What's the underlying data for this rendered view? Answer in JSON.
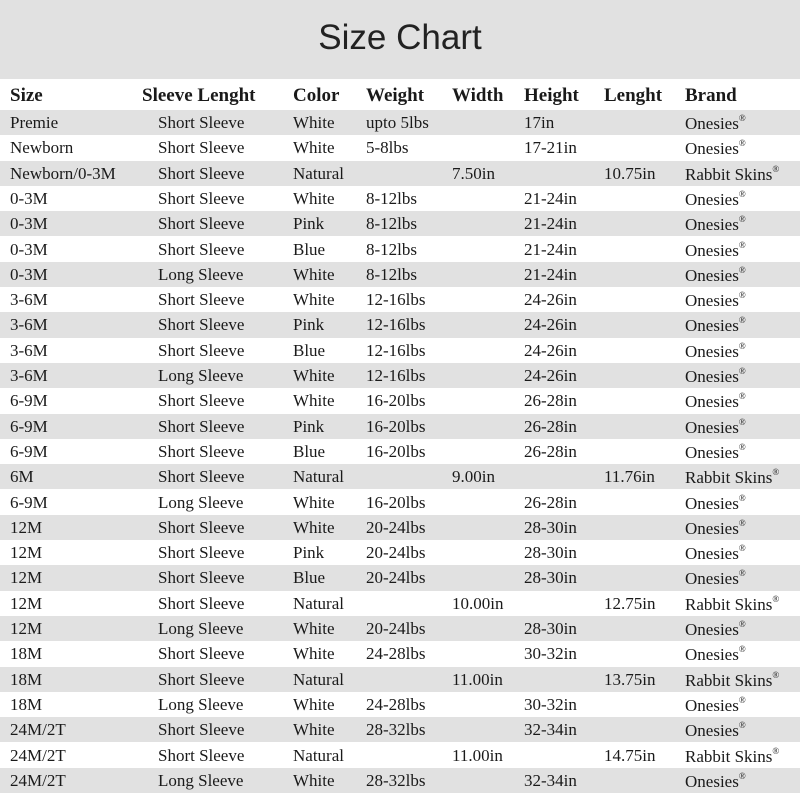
{
  "title": "Size Chart",
  "columns": [
    "Size",
    "Sleeve Lenght",
    "Color",
    "Weight",
    "Width",
    "Height",
    "Lenght",
    "Brand"
  ],
  "registered_mark": "®",
  "rows": [
    [
      "Premie",
      "Short Sleeve",
      "White",
      "upto 5lbs",
      "",
      "17in",
      "",
      "Onesies"
    ],
    [
      "Newborn",
      "Short Sleeve",
      "White",
      "5-8lbs",
      "",
      "17-21in",
      "",
      "Onesies"
    ],
    [
      "Newborn/0-3M",
      "Short Sleeve",
      "Natural",
      "",
      "7.50in",
      "",
      "10.75in",
      "Rabbit Skins"
    ],
    [
      "0-3M",
      "Short Sleeve",
      "White",
      "8-12lbs",
      "",
      "21-24in",
      "",
      "Onesies"
    ],
    [
      "0-3M",
      "Short Sleeve",
      "Pink",
      "8-12lbs",
      "",
      "21-24in",
      "",
      "Onesies"
    ],
    [
      "0-3M",
      "Short Sleeve",
      "Blue",
      "8-12lbs",
      "",
      "21-24in",
      "",
      "Onesies"
    ],
    [
      "0-3M",
      "Long Sleeve",
      "White",
      "8-12lbs",
      "",
      "21-24in",
      "",
      "Onesies"
    ],
    [
      "3-6M",
      "Short Sleeve",
      "White",
      "12-16lbs",
      "",
      "24-26in",
      "",
      "Onesies"
    ],
    [
      "3-6M",
      "Short Sleeve",
      "Pink",
      "12-16lbs",
      "",
      "24-26in",
      "",
      "Onesies"
    ],
    [
      "3-6M",
      "Short Sleeve",
      "Blue",
      "12-16lbs",
      "",
      "24-26in",
      "",
      "Onesies"
    ],
    [
      "3-6M",
      "Long Sleeve",
      "White",
      "12-16lbs",
      "",
      "24-26in",
      "",
      "Onesies"
    ],
    [
      "6-9M",
      "Short Sleeve",
      "White",
      "16-20lbs",
      "",
      "26-28in",
      "",
      "Onesies"
    ],
    [
      "6-9M",
      "Short Sleeve",
      "Pink",
      "16-20lbs",
      "",
      "26-28in",
      "",
      "Onesies"
    ],
    [
      "6-9M",
      "Short Sleeve",
      "Blue",
      "16-20lbs",
      "",
      "26-28in",
      "",
      "Onesies"
    ],
    [
      "6M",
      "Short Sleeve",
      "Natural",
      "",
      "9.00in",
      "",
      "11.76in",
      "Rabbit Skins"
    ],
    [
      "6-9M",
      "Long Sleeve",
      "White",
      "16-20lbs",
      "",
      "26-28in",
      "",
      "Onesies"
    ],
    [
      "12M",
      "Short Sleeve",
      "White",
      "20-24lbs",
      "",
      "28-30in",
      "",
      "Onesies"
    ],
    [
      "12M",
      "Short Sleeve",
      "Pink",
      "20-24lbs",
      "",
      "28-30in",
      "",
      "Onesies"
    ],
    [
      "12M",
      "Short Sleeve",
      "Blue",
      "20-24lbs",
      "",
      "28-30in",
      "",
      "Onesies"
    ],
    [
      "12M",
      "Short Sleeve",
      "Natural",
      "",
      "10.00in",
      "",
      "12.75in",
      "Rabbit Skins"
    ],
    [
      "12M",
      "Long Sleeve",
      "White",
      "20-24lbs",
      "",
      "28-30in",
      "",
      "Onesies"
    ],
    [
      "18M",
      "Short Sleeve",
      "White",
      "24-28lbs",
      "",
      "30-32in",
      "",
      "Onesies"
    ],
    [
      "18M",
      "Short Sleeve",
      "Natural",
      "",
      "11.00in",
      "",
      "13.75in",
      "Rabbit Skins"
    ],
    [
      "18M",
      "Long Sleeve",
      "White",
      "24-28lbs",
      "",
      "30-32in",
      "",
      "Onesies"
    ],
    [
      "24M/2T",
      "Short Sleeve",
      "White",
      "28-32lbs",
      "",
      "32-34in",
      "",
      "Onesies"
    ],
    [
      "24M/2T",
      "Short Sleeve",
      "Natural",
      "",
      "11.00in",
      "",
      "14.75in",
      "Rabbit Skins"
    ],
    [
      "24M/2T",
      "Long Sleeve",
      "White",
      "28-32lbs",
      "",
      "32-34in",
      "",
      "Onesies"
    ]
  ]
}
